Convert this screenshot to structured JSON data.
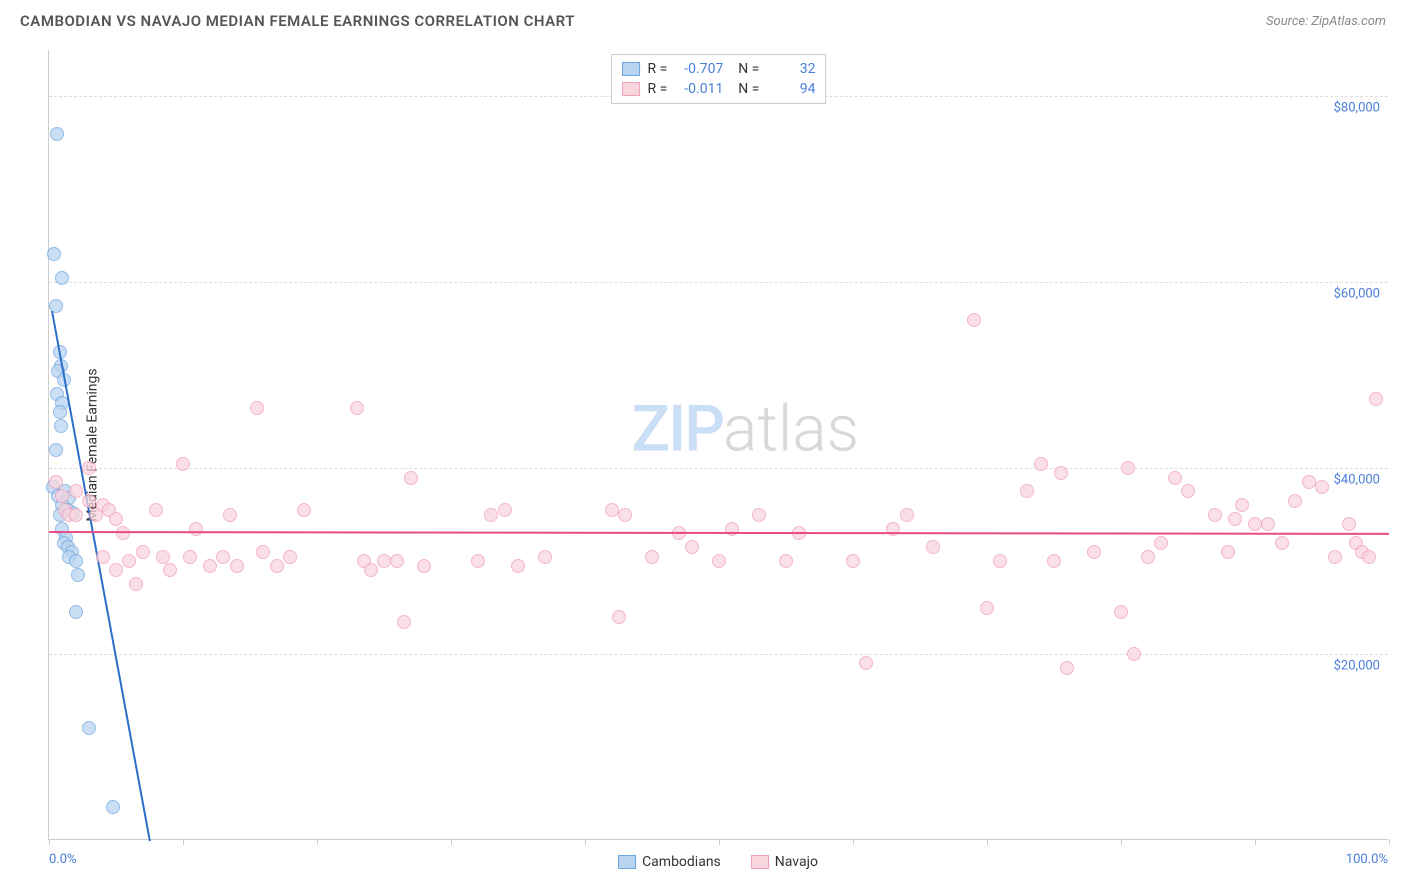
{
  "header": {
    "title": "CAMBODIAN VS NAVAJO MEDIAN FEMALE EARNINGS CORRELATION CHART",
    "source_label": "Source: ZipAtlas.com"
  },
  "chart": {
    "type": "scatter",
    "ylabel": "Median Female Earnings",
    "xlim": [
      0,
      100
    ],
    "ylim": [
      0,
      85000
    ],
    "xlabel_min": "0.0%",
    "xlabel_max": "100.0%",
    "yticks": [
      20000,
      40000,
      60000,
      80000
    ],
    "ytick_labels": [
      "$20,000",
      "$40,000",
      "$60,000",
      "$80,000"
    ],
    "xticks": [
      0,
      10,
      20,
      30,
      40,
      50,
      60,
      70,
      80,
      90,
      100
    ],
    "grid_color": "#dddddd",
    "axis_color": "#cccccc",
    "background_color": "#ffffff",
    "watermark": {
      "part1": "ZIP",
      "part2": "atlas"
    },
    "series": [
      {
        "name": "Cambodians",
        "color_fill": "#b9d4f1",
        "color_stroke": "#6ea8e0",
        "trend_color": "#2c6fc9",
        "R": "-0.707",
        "N": "32",
        "trend": {
          "x1": 0.2,
          "y1": 57000,
          "x2": 7.5,
          "y2": 0
        },
        "points": [
          [
            0.6,
            76000
          ],
          [
            0.4,
            63000
          ],
          [
            1.0,
            60500
          ],
          [
            0.5,
            57500
          ],
          [
            0.8,
            52500
          ],
          [
            0.9,
            51000
          ],
          [
            0.7,
            50500
          ],
          [
            1.1,
            49500
          ],
          [
            0.6,
            48000
          ],
          [
            1.0,
            47000
          ],
          [
            0.8,
            46000
          ],
          [
            0.9,
            44500
          ],
          [
            0.5,
            42000
          ],
          [
            0.3,
            38000
          ],
          [
            1.2,
            37500
          ],
          [
            0.7,
            37000
          ],
          [
            1.5,
            36800
          ],
          [
            1.0,
            36000
          ],
          [
            1.4,
            35500
          ],
          [
            0.8,
            35000
          ],
          [
            1.8,
            35200
          ],
          [
            1.0,
            33500
          ],
          [
            1.3,
            32500
          ],
          [
            1.1,
            32000
          ],
          [
            1.4,
            31500
          ],
          [
            1.7,
            31000
          ],
          [
            1.5,
            30500
          ],
          [
            2.0,
            30000
          ],
          [
            2.2,
            28500
          ],
          [
            2.0,
            24500
          ],
          [
            3.0,
            12000
          ],
          [
            4.8,
            3500
          ]
        ]
      },
      {
        "name": "Navajo",
        "color_fill": "#f9d5de",
        "color_stroke": "#f0a0b8",
        "trend_color": "#e94b86",
        "R": "-0.011",
        "N": "94",
        "trend": {
          "x1": 0,
          "y1": 33200,
          "x2": 100,
          "y2": 33000
        },
        "points": [
          [
            0.5,
            38500
          ],
          [
            1.0,
            37000
          ],
          [
            1.2,
            35500
          ],
          [
            1.5,
            35000
          ],
          [
            2.0,
            37500
          ],
          [
            2.0,
            35000
          ],
          [
            3.0,
            36500
          ],
          [
            3.5,
            35000
          ],
          [
            4.0,
            36000
          ],
          [
            4.5,
            35500
          ],
          [
            3.0,
            40000
          ],
          [
            5.0,
            34500
          ],
          [
            5.5,
            33000
          ],
          [
            4.0,
            30500
          ],
          [
            5.0,
            29000
          ],
          [
            6.0,
            30000
          ],
          [
            6.5,
            27500
          ],
          [
            7.0,
            31000
          ],
          [
            8.0,
            35500
          ],
          [
            8.5,
            30500
          ],
          [
            9.0,
            29000
          ],
          [
            10.0,
            40500
          ],
          [
            10.5,
            30500
          ],
          [
            11.0,
            33500
          ],
          [
            12.0,
            29500
          ],
          [
            13.0,
            30500
          ],
          [
            13.5,
            35000
          ],
          [
            14.0,
            29500
          ],
          [
            15.5,
            46500
          ],
          [
            16.0,
            31000
          ],
          [
            17.0,
            29500
          ],
          [
            18.0,
            30500
          ],
          [
            19.0,
            35500
          ],
          [
            23.0,
            46500
          ],
          [
            23.5,
            30000
          ],
          [
            24.0,
            29000
          ],
          [
            25.0,
            30000
          ],
          [
            26.0,
            30000
          ],
          [
            26.5,
            23500
          ],
          [
            27.0,
            39000
          ],
          [
            28.0,
            29500
          ],
          [
            32.0,
            30000
          ],
          [
            33.0,
            35000
          ],
          [
            34.0,
            35500
          ],
          [
            35.0,
            29500
          ],
          [
            37.0,
            30500
          ],
          [
            42.0,
            35500
          ],
          [
            42.5,
            24000
          ],
          [
            43.0,
            35000
          ],
          [
            45.0,
            30500
          ],
          [
            47.0,
            33000
          ],
          [
            48.0,
            31500
          ],
          [
            50.0,
            30000
          ],
          [
            51.0,
            33500
          ],
          [
            53.0,
            35000
          ],
          [
            55.0,
            30000
          ],
          [
            56.0,
            33000
          ],
          [
            60.0,
            30000
          ],
          [
            61.0,
            19000
          ],
          [
            63.0,
            33500
          ],
          [
            64.0,
            35000
          ],
          [
            66.0,
            31500
          ],
          [
            69.0,
            56000
          ],
          [
            70.0,
            25000
          ],
          [
            71.0,
            30000
          ],
          [
            73.0,
            37500
          ],
          [
            74.0,
            40500
          ],
          [
            75.0,
            30000
          ],
          [
            75.5,
            39500
          ],
          [
            76.0,
            18500
          ],
          [
            78.0,
            31000
          ],
          [
            80.0,
            24500
          ],
          [
            80.5,
            40000
          ],
          [
            81.0,
            20000
          ],
          [
            82.0,
            30500
          ],
          [
            83.0,
            32000
          ],
          [
            84.0,
            39000
          ],
          [
            85.0,
            37500
          ],
          [
            87.0,
            35000
          ],
          [
            88.0,
            31000
          ],
          [
            88.5,
            34500
          ],
          [
            89.0,
            36000
          ],
          [
            90.0,
            34000
          ],
          [
            91.0,
            34000
          ],
          [
            92.0,
            32000
          ],
          [
            93.0,
            36500
          ],
          [
            94.0,
            38500
          ],
          [
            95.0,
            38000
          ],
          [
            96.0,
            30500
          ],
          [
            97.0,
            34000
          ],
          [
            97.5,
            32000
          ],
          [
            98.0,
            31000
          ],
          [
            98.5,
            30500
          ],
          [
            99.0,
            47500
          ]
        ]
      }
    ]
  }
}
